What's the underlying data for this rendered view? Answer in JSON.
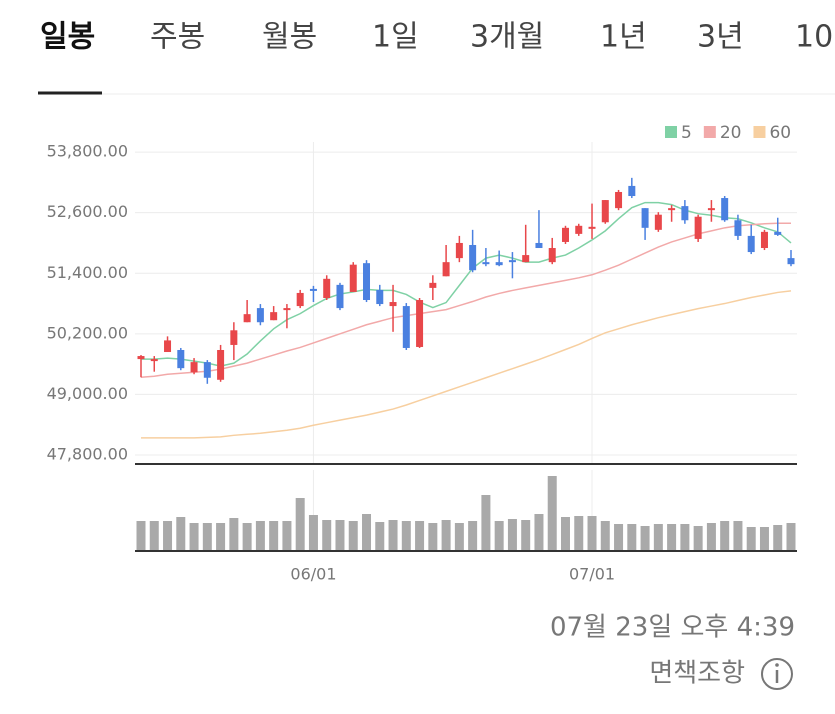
{
  "tabs": [
    "일봉",
    "주봉",
    "월봉",
    "1일",
    "3개월",
    "1년",
    "3년",
    "10"
  ],
  "chart_data": {
    "type": "candlestick",
    "categories": [
      null,
      null,
      null,
      null,
      null,
      null,
      null,
      null,
      null,
      null,
      null,
      null,
      null,
      "06/01",
      null,
      null,
      null,
      null,
      null,
      null,
      null,
      null,
      null,
      null,
      null,
      null,
      null,
      null,
      null,
      null,
      null,
      null,
      null,
      null,
      "07/01",
      null,
      null,
      null,
      null,
      null,
      null,
      null,
      null,
      null,
      null,
      null,
      null,
      null,
      null,
      null
    ],
    "up_color": "#e8474a",
    "down_color": "#4a80e0",
    "candles": {
      "open": [
        49700,
        49660,
        49840,
        49880,
        49440,
        49640,
        49290,
        49980,
        50430,
        50710,
        50470,
        50670,
        50750,
        51090,
        50910,
        51170,
        51030,
        51600,
        51070,
        50750,
        50750,
        49940,
        51110,
        51340,
        51700,
        51960,
        51620,
        51620,
        51660,
        51620,
        52000,
        51620,
        52020,
        52180,
        52280,
        52410,
        52690,
        53130,
        52690,
        52260,
        52650,
        52730,
        52080,
        52650,
        52890,
        52450,
        52140,
        51900,
        52220,
        51700
      ],
      "high": [
        49780,
        49760,
        50150,
        49920,
        49720,
        49680,
        49980,
        50430,
        50870,
        50790,
        50750,
        50790,
        51070,
        51150,
        51360,
        51210,
        51620,
        51660,
        51170,
        51170,
        50810,
        50910,
        51360,
        51960,
        52140,
        52260,
        51900,
        51850,
        51820,
        52360,
        52650,
        52100,
        52340,
        52380,
        52780,
        52850,
        53050,
        53290,
        52690,
        52610,
        52750,
        52850,
        52560,
        52850,
        52930,
        52560,
        52360,
        52260,
        52500,
        51860
      ],
      "low": [
        49340,
        49450,
        49840,
        49480,
        49400,
        49210,
        49250,
        49680,
        50430,
        50370,
        50470,
        50310,
        50710,
        50830,
        50870,
        50670,
        51030,
        50830,
        50750,
        50240,
        49880,
        49920,
        50870,
        51340,
        51620,
        51420,
        51540,
        51540,
        51300,
        51620,
        51900,
        51580,
        51980,
        52140,
        52080,
        52380,
        52650,
        52890,
        52060,
        52220,
        52420,
        52380,
        52020,
        52420,
        52420,
        52060,
        51780,
        51860,
        52140,
        51540
      ],
      "close": [
        49760,
        49700,
        50070,
        49520,
        49640,
        49330,
        49880,
        50270,
        50590,
        50430,
        50630,
        50710,
        51010,
        51050,
        51290,
        50710,
        51570,
        50870,
        50790,
        50830,
        49920,
        50870,
        51210,
        51620,
        52000,
        51460,
        51580,
        51560,
        51620,
        51760,
        51900,
        51900,
        52300,
        52340,
        52320,
        52850,
        53010,
        52930,
        52300,
        52560,
        52690,
        52450,
        52520,
        52690,
        52450,
        52140,
        51820,
        52220,
        52160,
        51580
      ]
    },
    "series": [
      {
        "name": "5",
        "color": "#7fd1a5",
        "values": [
          49700,
          49700,
          49720,
          49700,
          49660,
          49620,
          49560,
          49620,
          49800,
          50060,
          50300,
          50480,
          50600,
          50760,
          50900,
          50990,
          51030,
          51080,
          51060,
          51060,
          50980,
          50830,
          50720,
          50820,
          51160,
          51500,
          51700,
          51760,
          51700,
          51620,
          51620,
          51700,
          51760,
          51900,
          52060,
          52240,
          52480,
          52700,
          52800,
          52800,
          52760,
          52650,
          52580,
          52550,
          52500,
          52480,
          52400,
          52300,
          52220,
          52000
        ]
      },
      {
        "name": "20",
        "color": "#f2a9a9",
        "values": [
          49340,
          49360,
          49400,
          49420,
          49440,
          49460,
          49500,
          49560,
          49620,
          49700,
          49780,
          49860,
          49930,
          50020,
          50110,
          50200,
          50290,
          50380,
          50450,
          50520,
          50560,
          50600,
          50640,
          50680,
          50760,
          50840,
          50930,
          51000,
          51060,
          51110,
          51160,
          51210,
          51260,
          51310,
          51370,
          51460,
          51560,
          51680,
          51800,
          51920,
          52020,
          52100,
          52180,
          52240,
          52300,
          52340,
          52360,
          52380,
          52390,
          52390
        ]
      },
      {
        "name": "60",
        "color": "#f7cfa0",
        "values": [
          48140,
          48140,
          48140,
          48140,
          48140,
          48150,
          48160,
          48190,
          48210,
          48230,
          48260,
          48290,
          48330,
          48390,
          48440,
          48490,
          48540,
          48590,
          48650,
          48710,
          48790,
          48880,
          48970,
          49060,
          49150,
          49240,
          49330,
          49420,
          49510,
          49600,
          49690,
          49790,
          49890,
          49990,
          50110,
          50220,
          50300,
          50380,
          50450,
          50520,
          50580,
          50640,
          50700,
          50750,
          50800,
          50860,
          50920,
          50970,
          51020,
          51050
        ]
      }
    ],
    "volume": {
      "color": "#a9a9a9",
      "values": [
        30,
        30,
        30,
        34,
        28,
        28,
        28,
        33,
        28,
        30,
        30,
        30,
        53,
        36,
        31,
        31,
        30,
        37,
        29,
        31,
        30,
        30,
        28,
        31,
        28,
        30,
        56,
        30,
        32,
        31,
        37,
        75,
        34,
        35,
        35,
        30,
        27,
        27,
        25,
        27,
        27,
        27,
        25,
        28,
        30,
        30,
        24,
        24,
        26,
        28
      ]
    },
    "ylim": [
      47800,
      54000
    ],
    "yticks": [
      {
        "value": 53800,
        "label": "53,800.00"
      },
      {
        "value": 52600,
        "label": "52,600.00"
      },
      {
        "value": 51400,
        "label": "51,400.00"
      },
      {
        "value": 50200,
        "label": "50,200.00"
      },
      {
        "value": 49000,
        "label": "49,000.00"
      },
      {
        "value": 47800,
        "label": "47,800.00"
      }
    ],
    "grid": true
  },
  "timestamp": "07월 23일 오후 4:39",
  "disclaimer": "면책조항"
}
